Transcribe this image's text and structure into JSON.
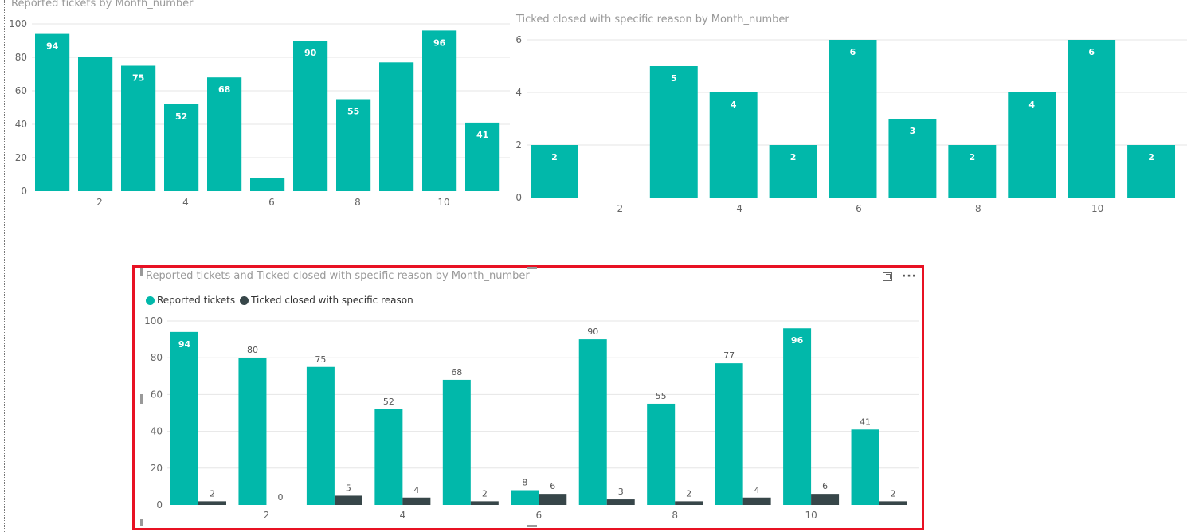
{
  "colors": {
    "teal": "#01b8aa",
    "dark": "#374649",
    "frame": "#e81123"
  },
  "legend": {
    "series1": "Reported tickets",
    "series2": "Ticked closed with specific reason"
  },
  "icons": {
    "focus": "focus-mode-icon",
    "more": "more-options-icon"
  },
  "chart_data": [
    {
      "type": "bar",
      "title": "Reported tickets by Month_number",
      "categories": [
        1,
        2,
        3,
        4,
        5,
        6,
        7,
        8,
        9,
        10,
        11
      ],
      "values": [
        94,
        80,
        75,
        52,
        68,
        8,
        90,
        55,
        77,
        96,
        41
      ],
      "data_labels": [
        "94",
        "",
        "75",
        "52",
        "68",
        "",
        "90",
        "55",
        "",
        "96",
        "41"
      ],
      "x_ticks": [
        "2",
        "4",
        "6",
        "8",
        "10"
      ],
      "y_ticks": [
        "0",
        "20",
        "40",
        "60",
        "80",
        "100"
      ],
      "ylim": [
        0,
        100
      ],
      "grid": true
    },
    {
      "type": "bar",
      "title": "Ticked closed with specific reason by Month_number",
      "categories": [
        1,
        2,
        3,
        4,
        5,
        6,
        7,
        8,
        9,
        10,
        11
      ],
      "values": [
        2,
        0,
        5,
        4,
        2,
        6,
        3,
        2,
        4,
        6,
        2
      ],
      "data_labels": [
        "2",
        "",
        "5",
        "4",
        "2",
        "6",
        "3",
        "2",
        "4",
        "6",
        "2"
      ],
      "x_ticks": [
        "2",
        "4",
        "6",
        "8",
        "10"
      ],
      "y_ticks": [
        "0",
        "2",
        "4",
        "6"
      ],
      "ylim": [
        0,
        6
      ],
      "grid": true
    },
    {
      "type": "bar",
      "title": "Reported tickets and Ticked closed with specific reason by Month_number",
      "categories": [
        1,
        2,
        3,
        4,
        5,
        6,
        7,
        8,
        9,
        10,
        11
      ],
      "series": [
        {
          "name": "Reported tickets",
          "values": [
            94,
            80,
            75,
            52,
            68,
            8,
            90,
            55,
            77,
            96,
            41
          ],
          "data_labels": [
            "94",
            "80",
            "75",
            "52",
            "68",
            "8",
            "90",
            "55",
            "77",
            "96",
            "41"
          ]
        },
        {
          "name": "Ticked closed with specific reason",
          "values": [
            2,
            0,
            5,
            4,
            2,
            6,
            3,
            2,
            4,
            6,
            2
          ],
          "data_labels": [
            "2",
            "0",
            "5",
            "4",
            "2",
            "6",
            "3",
            "2",
            "4",
            "6",
            "2"
          ]
        }
      ],
      "x_ticks": [
        "2",
        "4",
        "6",
        "8",
        "10"
      ],
      "y_ticks": [
        "0",
        "20",
        "40",
        "60",
        "80",
        "100"
      ],
      "ylim": [
        0,
        100
      ],
      "legend": "top-left",
      "grid": true
    }
  ]
}
